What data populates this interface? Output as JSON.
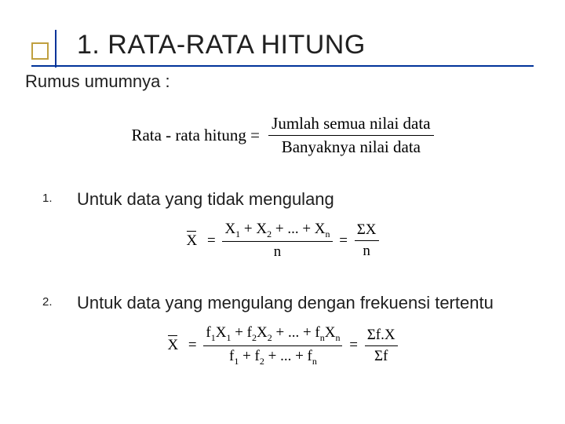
{
  "title": "1. RATA-RATA HITUNG",
  "subtitle": "Rumus umumnya :",
  "mainFormula": {
    "lhs": "Rata - rata hitung",
    "num": "Jumlah semua nilai data",
    "den": "Banyaknya nilai data"
  },
  "items": [
    {
      "num": "1.",
      "text": "Untuk data yang tidak mengulang",
      "formula": {
        "lhs": "X",
        "frac1_num_parts": [
          "X",
          "1",
          " + X",
          "2",
          " + ... + X",
          "n"
        ],
        "frac1_den": "n",
        "frac2_num": "ΣX",
        "frac2_den": "n"
      }
    },
    {
      "num": "2.",
      "text": "Untuk data yang mengulang dengan frekuensi tertentu",
      "formula": {
        "lhs": "X",
        "frac1_num_parts": [
          "f",
          "1",
          "X",
          "1",
          " + f",
          "2",
          "X",
          "2",
          " + ... + f",
          "n",
          "X",
          "n"
        ],
        "frac1_den_parts": [
          "f",
          "1",
          " + f",
          "2",
          " + ... + f",
          "n"
        ],
        "frac2_num": "Σf.X",
        "frac2_den": "Σf"
      }
    }
  ],
  "colors": {
    "underline": "#003399",
    "bulletBorder": "#c0a040",
    "text": "#202020",
    "bg": "#ffffff"
  }
}
